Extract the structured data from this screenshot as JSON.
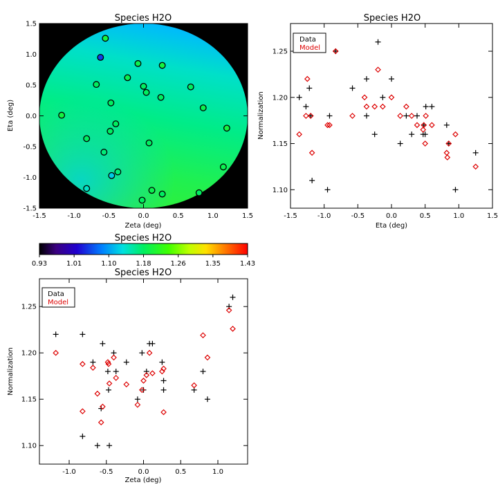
{
  "colors": {
    "data_marker": "#000000",
    "model_marker": "#dd0000",
    "background": "#000000"
  },
  "chart_data": [
    {
      "type": "heatmap",
      "title": "Species H2O",
      "xlabel": "Zeta (deg)",
      "ylabel": "Eta (deg)",
      "xlim": [
        -1.5,
        1.5
      ],
      "ylim": [
        -1.5,
        1.5
      ],
      "xticks": [
        "-1.5",
        "-1.0",
        "-0.5",
        "0.0",
        "0.5",
        "1.0",
        "1.5"
      ],
      "yticks": [
        "-1.5",
        "-1.0",
        "-0.5",
        "0.0",
        "0.5",
        "1.0",
        "1.5"
      ],
      "colorscale": "rainbow",
      "points": [
        {
          "x": -0.55,
          "y": 1.26,
          "v": 1.2
        },
        {
          "x": -0.62,
          "y": 0.95,
          "v": 1.05
        },
        {
          "x": -0.08,
          "y": 0.85,
          "v": 1.19
        },
        {
          "x": 0.27,
          "y": 0.82,
          "v": 1.2
        },
        {
          "x": -0.68,
          "y": 0.51,
          "v": 1.18
        },
        {
          "x": -0.23,
          "y": 0.62,
          "v": 1.19
        },
        {
          "x": 0.0,
          "y": 0.48,
          "v": 1.18
        },
        {
          "x": 0.68,
          "y": 0.47,
          "v": 1.18
        },
        {
          "x": 0.04,
          "y": 0.38,
          "v": 1.18
        },
        {
          "x": 0.25,
          "y": 0.3,
          "v": 1.18
        },
        {
          "x": -0.47,
          "y": 0.21,
          "v": 1.18
        },
        {
          "x": 0.86,
          "y": 0.13,
          "v": 1.19
        },
        {
          "x": -1.18,
          "y": 0.01,
          "v": 1.2
        },
        {
          "x": -0.4,
          "y": -0.13,
          "v": 1.18
        },
        {
          "x": -0.48,
          "y": -0.25,
          "v": 1.18
        },
        {
          "x": 1.2,
          "y": -0.2,
          "v": 1.2
        },
        {
          "x": -0.82,
          "y": -0.37,
          "v": 1.18
        },
        {
          "x": 0.08,
          "y": -0.44,
          "v": 1.18
        },
        {
          "x": -0.57,
          "y": -0.59,
          "v": 1.17
        },
        {
          "x": -0.37,
          "y": -0.91,
          "v": 1.17
        },
        {
          "x": -0.46,
          "y": -0.97,
          "v": 1.12
        },
        {
          "x": 1.15,
          "y": -0.83,
          "v": 1.19
        },
        {
          "x": -0.82,
          "y": -1.18,
          "v": 1.14
        },
        {
          "x": 0.12,
          "y": -1.21,
          "v": 1.19
        },
        {
          "x": 0.27,
          "y": -1.27,
          "v": 1.18
        },
        {
          "x": 0.8,
          "y": -1.25,
          "v": 1.18
        },
        {
          "x": -0.02,
          "y": -1.37,
          "v": 1.18
        }
      ]
    },
    {
      "type": "scatter",
      "title": "Species H2O",
      "xlabel": "Eta (deg)",
      "ylabel": "Normalization",
      "xlim": [
        -1.5,
        1.5
      ],
      "ylim": [
        1.08,
        1.28
      ],
      "xticks": [
        "-1.5",
        "-1.0",
        "-0.5",
        "0.0",
        "0.5",
        "1.0",
        "1.5"
      ],
      "yticks": [
        "1.10",
        "1.15",
        "1.20",
        "1.25"
      ],
      "legend": [
        "Data",
        "Model"
      ],
      "legend_position": "top-left",
      "series": [
        {
          "name": "Data",
          "marker": "plus",
          "x": [
            -1.37,
            -1.27,
            -1.22,
            -1.2,
            -1.18,
            -0.95,
            -0.92,
            -0.83,
            -0.58,
            -0.37,
            -0.37,
            -0.25,
            -0.2,
            -0.13,
            0.0,
            0.13,
            0.22,
            0.3,
            0.38,
            0.47,
            0.48,
            0.5,
            0.51,
            0.6,
            0.82,
            0.85,
            0.95,
            1.25
          ],
          "y": [
            1.2,
            1.19,
            1.21,
            1.18,
            1.11,
            1.1,
            1.18,
            1.25,
            1.21,
            1.18,
            1.22,
            1.16,
            1.26,
            1.2,
            1.22,
            1.15,
            1.18,
            1.16,
            1.18,
            1.16,
            1.17,
            1.16,
            1.19,
            1.19,
            1.17,
            1.15,
            1.1,
            1.14
          ]
        },
        {
          "name": "Model",
          "marker": "diamond",
          "x": [
            -1.37,
            -1.27,
            -1.25,
            -1.2,
            -1.18,
            -0.95,
            -0.92,
            -0.83,
            -0.58,
            -0.4,
            -0.37,
            -0.25,
            -0.2,
            -0.13,
            0.0,
            0.13,
            0.22,
            0.3,
            0.38,
            0.47,
            0.48,
            0.5,
            0.51,
            0.6,
            0.82,
            0.83,
            0.85,
            0.95,
            1.25
          ],
          "y": [
            1.16,
            1.18,
            1.22,
            1.18,
            1.14,
            1.17,
            1.17,
            1.25,
            1.18,
            1.2,
            1.19,
            1.19,
            1.23,
            1.19,
            1.2,
            1.18,
            1.19,
            1.18,
            1.17,
            1.165,
            1.17,
            1.15,
            1.18,
            1.17,
            1.14,
            1.135,
            1.15,
            1.16,
            1.125
          ]
        }
      ]
    },
    {
      "type": "colorbar",
      "title": "Species H2O",
      "tick_labels": [
        "0.93",
        "1.01",
        "1.10",
        "1.18",
        "1.26",
        "1.35",
        "1.43"
      ],
      "vmin": 0.93,
      "vmax": 1.43
    },
    {
      "type": "scatter",
      "title": "Species H2O",
      "xlabel": "Zeta (deg)",
      "ylabel": "Normalization",
      "xlim": [
        -1.4,
        1.4
      ],
      "ylim": [
        1.08,
        1.28
      ],
      "xticks": [
        "-1.0",
        "-0.5",
        "0.0",
        "0.5",
        "1.0"
      ],
      "yticks": [
        "1.10",
        "1.15",
        "1.20",
        "1.25"
      ],
      "legend": [
        "Data",
        "Model"
      ],
      "legend_position": "top-left",
      "series": [
        {
          "name": "Data",
          "marker": "plus",
          "x": [
            -1.18,
            -0.82,
            -0.82,
            -0.68,
            -0.62,
            -0.55,
            -0.57,
            -0.48,
            -0.47,
            -0.46,
            -0.4,
            -0.37,
            -0.23,
            -0.08,
            -0.02,
            0.0,
            0.04,
            0.08,
            0.12,
            0.25,
            0.27,
            0.27,
            0.68,
            0.8,
            0.86,
            1.15,
            1.2
          ],
          "y": [
            1.22,
            1.22,
            1.11,
            1.19,
            1.1,
            1.21,
            1.14,
            1.18,
            1.16,
            1.1,
            1.2,
            1.18,
            1.19,
            1.15,
            1.2,
            1.16,
            1.18,
            1.21,
            1.21,
            1.19,
            1.17,
            1.16,
            1.16,
            1.18,
            1.15,
            1.25,
            1.26
          ]
        },
        {
          "name": "Model",
          "marker": "diamond",
          "x": [
            -1.18,
            -0.82,
            -0.82,
            -0.68,
            -0.62,
            -0.57,
            -0.55,
            -0.48,
            -0.47,
            -0.46,
            -0.4,
            -0.37,
            -0.23,
            -0.08,
            -0.02,
            0.0,
            0.04,
            0.08,
            0.12,
            0.25,
            0.27,
            0.27,
            0.68,
            0.8,
            0.86,
            1.15,
            1.2
          ],
          "y": [
            1.2,
            1.137,
            1.188,
            1.184,
            1.156,
            1.125,
            1.142,
            1.19,
            1.188,
            1.167,
            1.195,
            1.173,
            1.166,
            1.144,
            1.16,
            1.17,
            1.176,
            1.2,
            1.178,
            1.18,
            1.183,
            1.136,
            1.165,
            1.219,
            1.195,
            1.246,
            1.226
          ]
        }
      ]
    }
  ]
}
